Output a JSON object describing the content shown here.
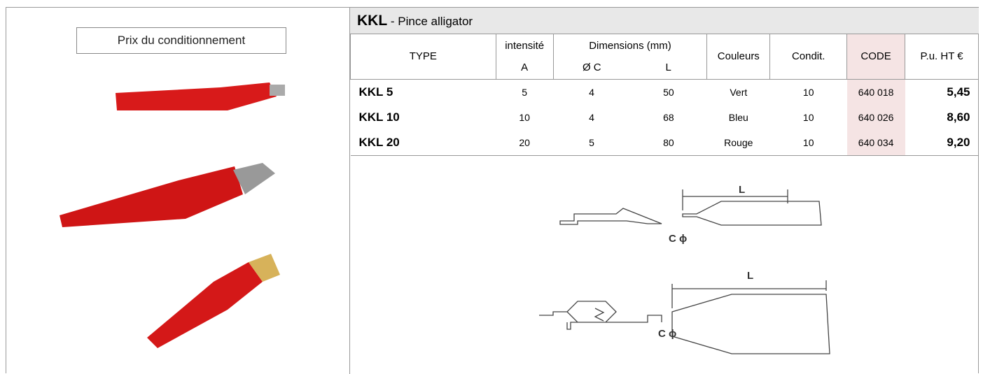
{
  "button": "Prix du conditionnement",
  "header": {
    "code": "KKL",
    "title": "- Pince alligator"
  },
  "table": {
    "head": [
      "TYPE",
      "intensité",
      "Dimensions (mm)",
      "Couleurs",
      "Condit.",
      "CODE",
      "P.u. HT €"
    ],
    "subhead": [
      "A",
      "Ø C",
      "L"
    ],
    "rows": [
      [
        "KKL 5",
        "5",
        "4",
        "50",
        "Vert",
        "10",
        "640 018",
        "5,45"
      ],
      [
        "KKL 10",
        "10",
        "4",
        "68",
        "Bleu",
        "10",
        "640 026",
        "8,60"
      ],
      [
        "KKL 20",
        "20",
        "5",
        "80",
        "Rouge",
        "10",
        "640 034",
        "9,20"
      ]
    ]
  },
  "diagrams": [
    {
      "length_label": "L",
      "diameter_label": "C ϕ"
    },
    {
      "length_label": "L",
      "diameter_label": "C ϕ"
    }
  ]
}
